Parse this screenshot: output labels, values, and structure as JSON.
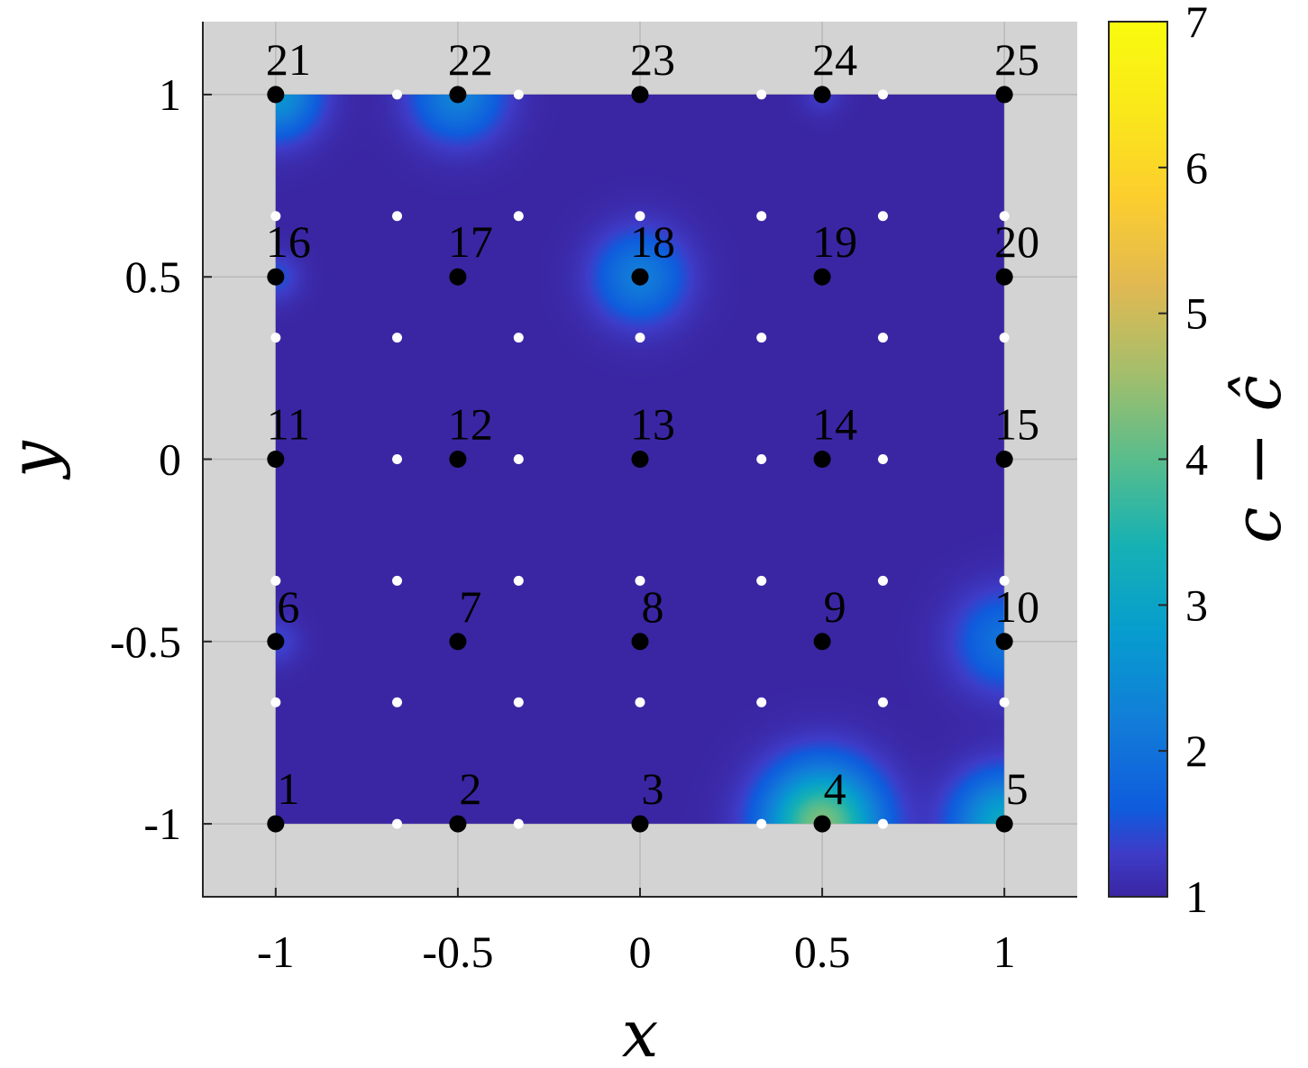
{
  "chart_data": {
    "type": "heatmap",
    "title": "",
    "xlabel": "x",
    "ylabel": "y",
    "colorbar_label": "c − ĉ",
    "xlim": [
      -1.2,
      1.2
    ],
    "ylim": [
      -1.2,
      1.2
    ],
    "clim": [
      1,
      7
    ],
    "grid": true,
    "background_color": "#d3d3d3",
    "x_ticks": [
      "-1",
      "-0.5",
      "0",
      "0.5",
      "1"
    ],
    "y_ticks": [
      "-1",
      "-0.5",
      "0",
      "0.5",
      "1"
    ],
    "x_tick_values": [
      -1,
      -0.5,
      0,
      0.5,
      1
    ],
    "y_tick_values": [
      -1,
      -0.5,
      0,
      0.5,
      1
    ],
    "colorbar_ticks": [
      "1",
      "2",
      "3",
      "4",
      "5",
      "6",
      "7"
    ],
    "colorbar_tick_values": [
      1,
      2,
      3,
      4,
      5,
      6,
      7
    ],
    "colormap": "parula",
    "base_value": 1.0,
    "field_domain": {
      "x": [
        -1,
        1
      ],
      "y": [
        -1,
        1
      ]
    },
    "sensor_nodes": [
      {
        "id": "1",
        "x": -1,
        "y": -1
      },
      {
        "id": "2",
        "x": -0.5,
        "y": -1
      },
      {
        "id": "3",
        "x": 0,
        "y": -1
      },
      {
        "id": "4",
        "x": 0.5,
        "y": -1
      },
      {
        "id": "5",
        "x": 1,
        "y": -1
      },
      {
        "id": "6",
        "x": -1,
        "y": -0.5
      },
      {
        "id": "7",
        "x": -0.5,
        "y": -0.5
      },
      {
        "id": "8",
        "x": 0,
        "y": -0.5
      },
      {
        "id": "9",
        "x": 0.5,
        "y": -0.5
      },
      {
        "id": "10",
        "x": 1,
        "y": -0.5
      },
      {
        "id": "11",
        "x": -1,
        "y": 0
      },
      {
        "id": "12",
        "x": -0.5,
        "y": 0
      },
      {
        "id": "13",
        "x": 0,
        "y": 0
      },
      {
        "id": "14",
        "x": 0.5,
        "y": 0
      },
      {
        "id": "15",
        "x": 1,
        "y": 0
      },
      {
        "id": "16",
        "x": -1,
        "y": 0.5
      },
      {
        "id": "17",
        "x": -0.5,
        "y": 0.5
      },
      {
        "id": "18",
        "x": 0,
        "y": 0.5
      },
      {
        "id": "19",
        "x": 0.5,
        "y": 0.5
      },
      {
        "id": "20",
        "x": 1,
        "y": 0.5
      },
      {
        "id": "21",
        "x": -1,
        "y": 1
      },
      {
        "id": "22",
        "x": -0.5,
        "y": 1
      },
      {
        "id": "23",
        "x": 0,
        "y": 1
      },
      {
        "id": "24",
        "x": 0.5,
        "y": 1
      },
      {
        "id": "25",
        "x": 1,
        "y": 1
      }
    ],
    "hotspots": [
      {
        "x": 0.5,
        "y": -1,
        "peak": 4.3,
        "radius": 0.16
      },
      {
        "x": 1,
        "y": -1,
        "peak": 3.1,
        "radius": 0.14
      },
      {
        "x": 1,
        "y": -0.5,
        "peak": 2.0,
        "radius": 0.14
      },
      {
        "x": -1,
        "y": 1,
        "peak": 2.7,
        "radius": 0.12
      },
      {
        "x": -0.5,
        "y": 1,
        "peak": 2.3,
        "radius": 0.13
      },
      {
        "x": 0,
        "y": 0.5,
        "peak": 2.2,
        "radius": 0.13
      },
      {
        "x": -1,
        "y": 0.5,
        "peak": 1.5,
        "radius": 0.07
      },
      {
        "x": -1,
        "y": -0.5,
        "peak": 1.4,
        "radius": 0.07
      },
      {
        "x": 0.5,
        "y": 1,
        "peak": 1.3,
        "radius": 0.06
      }
    ],
    "white_points_grid": [
      -1,
      -0.6667,
      -0.3333,
      0,
      0.3333,
      0.6667,
      1
    ]
  }
}
